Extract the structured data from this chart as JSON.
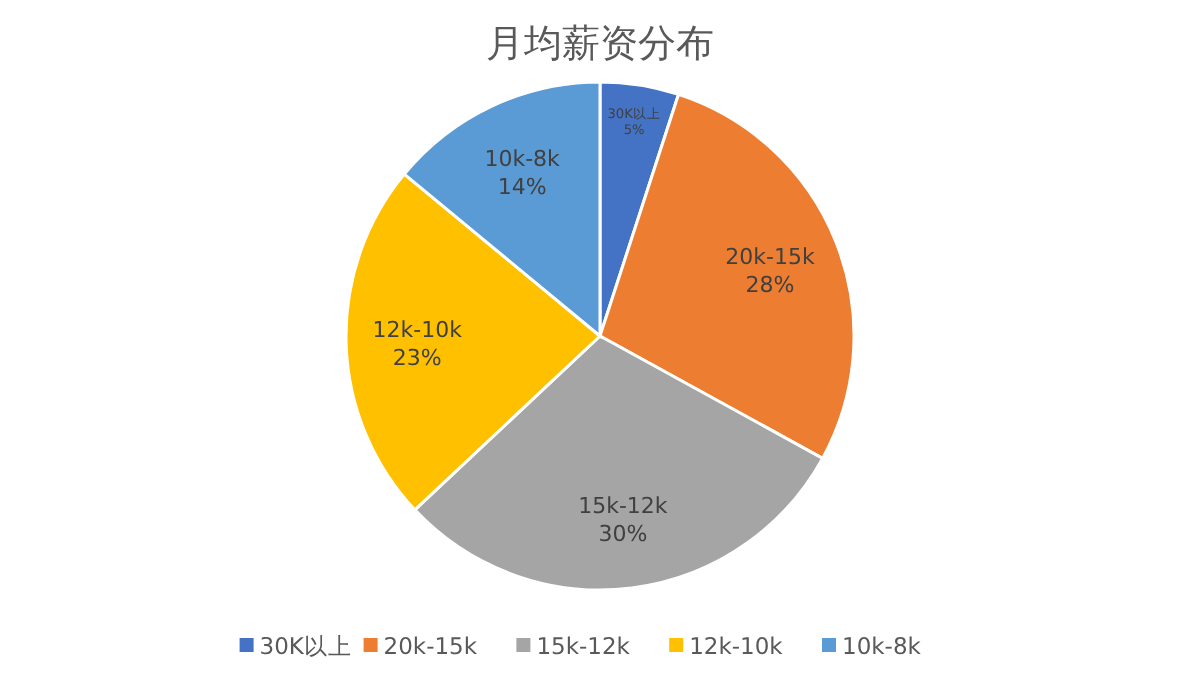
{
  "chart_data": {
    "type": "pie",
    "title": "月均薪资分布",
    "categories": [
      "30K以上",
      "20k-15k",
      "15k-12k",
      "12k-10k",
      "10k-8k"
    ],
    "values": [
      5,
      28,
      30,
      23,
      14
    ],
    "value_labels": [
      "5%",
      "28%",
      "30%",
      "23%",
      "14%"
    ],
    "colors": [
      "#4472c4",
      "#ed7d31",
      "#a5a5a5",
      "#ffc000",
      "#5b9bd5"
    ],
    "legend": "bottom"
  }
}
